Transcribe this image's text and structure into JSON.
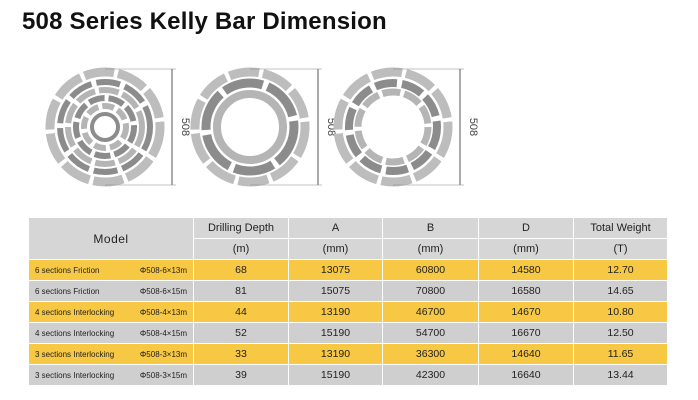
{
  "header": {
    "title": "508 Series Kelly Bar Dimension"
  },
  "diagrams": [
    {
      "dimension": "508"
    },
    {
      "dimension": "508"
    },
    {
      "dimension": "508"
    }
  ],
  "table": {
    "model_header": "Model",
    "columns": [
      {
        "label": "Drilling Depth",
        "unit": "(m)"
      },
      {
        "label": "A",
        "unit": "(mm)"
      },
      {
        "label": "B",
        "unit": "(mm)"
      },
      {
        "label": "D",
        "unit": "(mm)"
      },
      {
        "label": "Total Weight",
        "unit": "(T)"
      }
    ],
    "rows": [
      {
        "model": "6 sections Friction",
        "spec": "Φ508-6×13m",
        "values": [
          "68",
          "13075",
          "60800",
          "14580",
          "12.70"
        ]
      },
      {
        "model": "6 sections Friction",
        "spec": "Φ508-6×15m",
        "values": [
          "81",
          "15075",
          "70800",
          "16580",
          "14.65"
        ]
      },
      {
        "model": "4 sections Interlocking",
        "spec": "Φ508-4×13m",
        "values": [
          "44",
          "13190",
          "46700",
          "14670",
          "10.80"
        ]
      },
      {
        "model": "4 sections Interlocking",
        "spec": "Φ508-4×15m",
        "values": [
          "52",
          "15190",
          "54700",
          "16670",
          "12.50"
        ]
      },
      {
        "model": "3 sections Interlocking",
        "spec": "Φ508-3×13m",
        "values": [
          "33",
          "13190",
          "36300",
          "14640",
          "11.65"
        ]
      },
      {
        "model": "3 sections Interlocking",
        "spec": "Φ508-3×15m",
        "values": [
          "39",
          "15190",
          "42300",
          "16640",
          "13.44"
        ]
      }
    ]
  }
}
